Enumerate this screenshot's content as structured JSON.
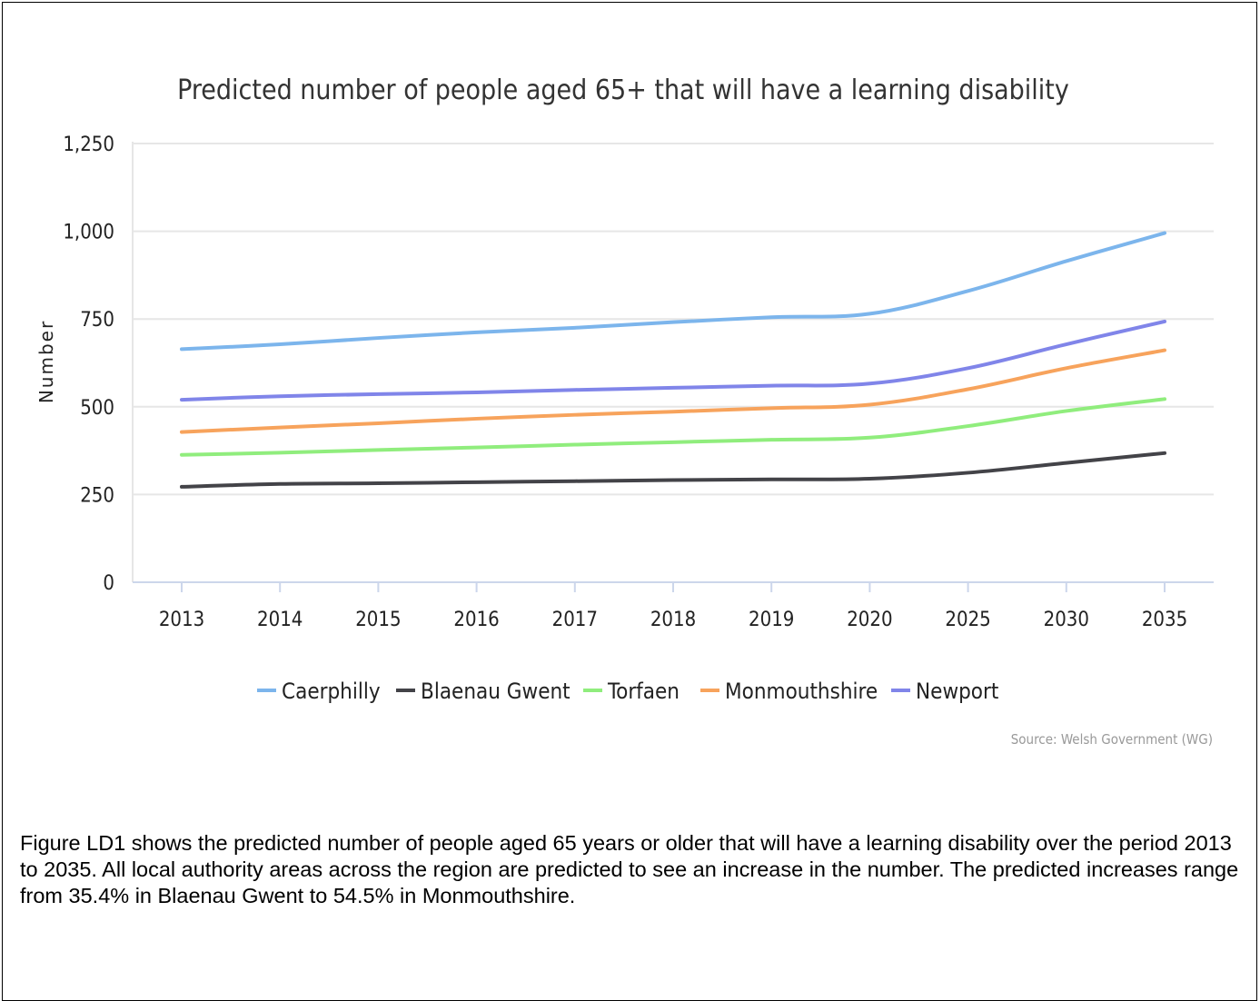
{
  "chart_data": {
    "type": "line",
    "title": "Predicted number of people aged 65+ that will have a learning disability",
    "xlabel": "",
    "ylabel": "Number",
    "categories": [
      "2013",
      "2014",
      "2015",
      "2016",
      "2017",
      "2018",
      "2019",
      "2020",
      "2025",
      "2030",
      "2035"
    ],
    "ylim": [
      0,
      1250
    ],
    "yticks": [
      0,
      250,
      500,
      750,
      1000,
      1250
    ],
    "ytick_labels": [
      "0",
      "250",
      "500",
      "750",
      "1,000",
      "1,250"
    ],
    "grid": true,
    "legend_position": "bottom",
    "series": [
      {
        "name": "Caerphilly",
        "color": "#7cb5ec",
        "values": [
          664,
          678,
          696,
          712,
          725,
          741,
          755,
          765,
          830,
          915,
          995
        ]
      },
      {
        "name": "Blaenau Gwent",
        "color": "#434348",
        "values": [
          272,
          280,
          282,
          285,
          288,
          291,
          293,
          295,
          312,
          340,
          368
        ]
      },
      {
        "name": "Torfaen",
        "color": "#90ed7d",
        "values": [
          363,
          369,
          377,
          384,
          392,
          399,
          406,
          412,
          445,
          488,
          522
        ]
      },
      {
        "name": "Monmouthshire",
        "color": "#f7a35c",
        "values": [
          428,
          441,
          453,
          466,
          477,
          486,
          496,
          506,
          550,
          610,
          661
        ]
      },
      {
        "name": "Newport",
        "color": "#8085e9",
        "values": [
          520,
          530,
          536,
          541,
          548,
          554,
          560,
          566,
          610,
          678,
          743
        ]
      }
    ],
    "source": "Source: Welsh Government (WG)"
  },
  "caption": "Figure LD1 shows the predicted number of people aged 65 years or older that will have a learning disability over the period 2013 to 2035. All local authority areas across the region are predicted to see an increase in the number. The predicted increases range from 35.4% in Blaenau Gwent to 54.5% in Monmouthshire."
}
